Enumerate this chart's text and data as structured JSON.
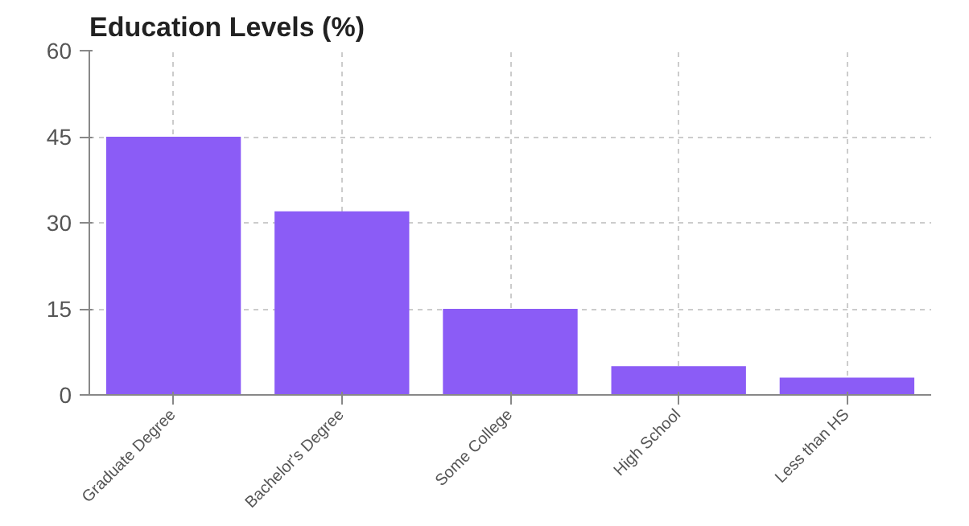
{
  "chart_data": {
    "type": "bar",
    "title": "Education Levels (%)",
    "categories": [
      "Graduate Degree",
      "Bachelor's Degree",
      "Some College",
      "High School",
      "Less than HS"
    ],
    "values": [
      45,
      32,
      15,
      5,
      3
    ],
    "color": "#8b5cf6",
    "ylim": [
      0,
      60
    ],
    "yticks": [
      0,
      15,
      30,
      45,
      60
    ],
    "grid": true
  }
}
